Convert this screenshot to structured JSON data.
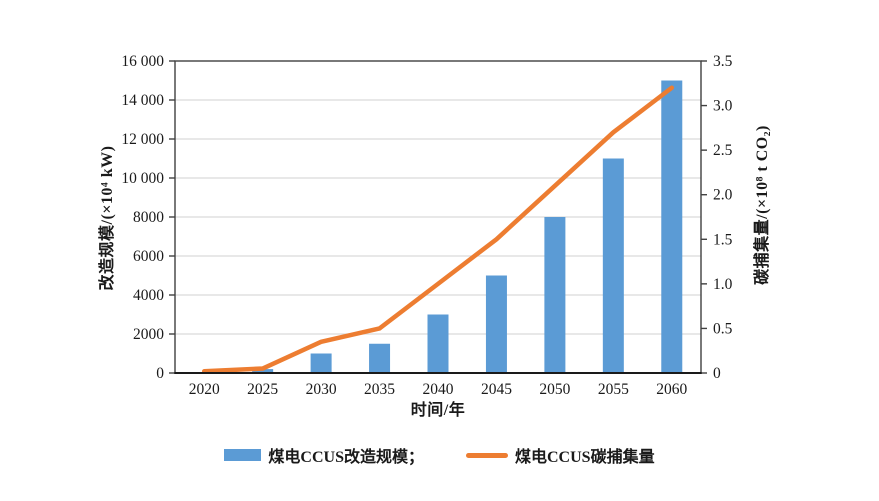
{
  "chart_data": {
    "type": "bar+line combo",
    "categories": [
      "2020",
      "2025",
      "2030",
      "2035",
      "2040",
      "2045",
      "2050",
      "2055",
      "2060"
    ],
    "series": [
      {
        "name": "煤电CCUS改造规模",
        "type": "bar",
        "axis": "left",
        "color": "#5B9BD5",
        "values": [
          0,
          200,
          1000,
          1500,
          3000,
          5000,
          8000,
          11000,
          15000
        ]
      },
      {
        "name": "煤电CCUS碳捕集量",
        "type": "line",
        "axis": "right",
        "color": "#ED7D31",
        "values": [
          0.02,
          0.05,
          0.35,
          0.5,
          1.0,
          1.5,
          2.1,
          2.7,
          3.2
        ]
      }
    ],
    "x_axis": {
      "label": "时间/年",
      "tick_labels": [
        "2020",
        "2025",
        "2030",
        "2035",
        "2040",
        "2045",
        "2050",
        "2055",
        "2060"
      ]
    },
    "left_axis": {
      "label": "改造规模/(×10⁴ kW)",
      "min": 0,
      "max": 16000,
      "tick_step": 2000,
      "tick_labels": [
        "0",
        "2000",
        "4000",
        "6000",
        "8000",
        "10 000",
        "12 000",
        "14 000",
        "16 000"
      ]
    },
    "right_axis": {
      "label": "碳捕集量/(×10⁸ t CO₂)",
      "min": 0,
      "max": 3.5,
      "tick_step": 0.5,
      "tick_labels": [
        "0",
        "0.5",
        "1.0",
        "1.5",
        "2.0",
        "2.5",
        "3.0",
        "3.5"
      ]
    },
    "grid": "horizontal, every 2000 on left axis",
    "legend_position": "bottom-center",
    "legend": [
      {
        "label": "煤电CCUS改造规模；",
        "swatch": "bar"
      },
      {
        "label": "煤电CCUS碳捕集量",
        "swatch": "line"
      }
    ],
    "title": ""
  },
  "colors": {
    "bar": "#5B9BD5",
    "line": "#ED7D31",
    "gridline": "#d9d9d9",
    "frame": "#404040",
    "baseline": "#1a1a1a",
    "text": "#1a1a1a",
    "background": "#ffffff"
  }
}
